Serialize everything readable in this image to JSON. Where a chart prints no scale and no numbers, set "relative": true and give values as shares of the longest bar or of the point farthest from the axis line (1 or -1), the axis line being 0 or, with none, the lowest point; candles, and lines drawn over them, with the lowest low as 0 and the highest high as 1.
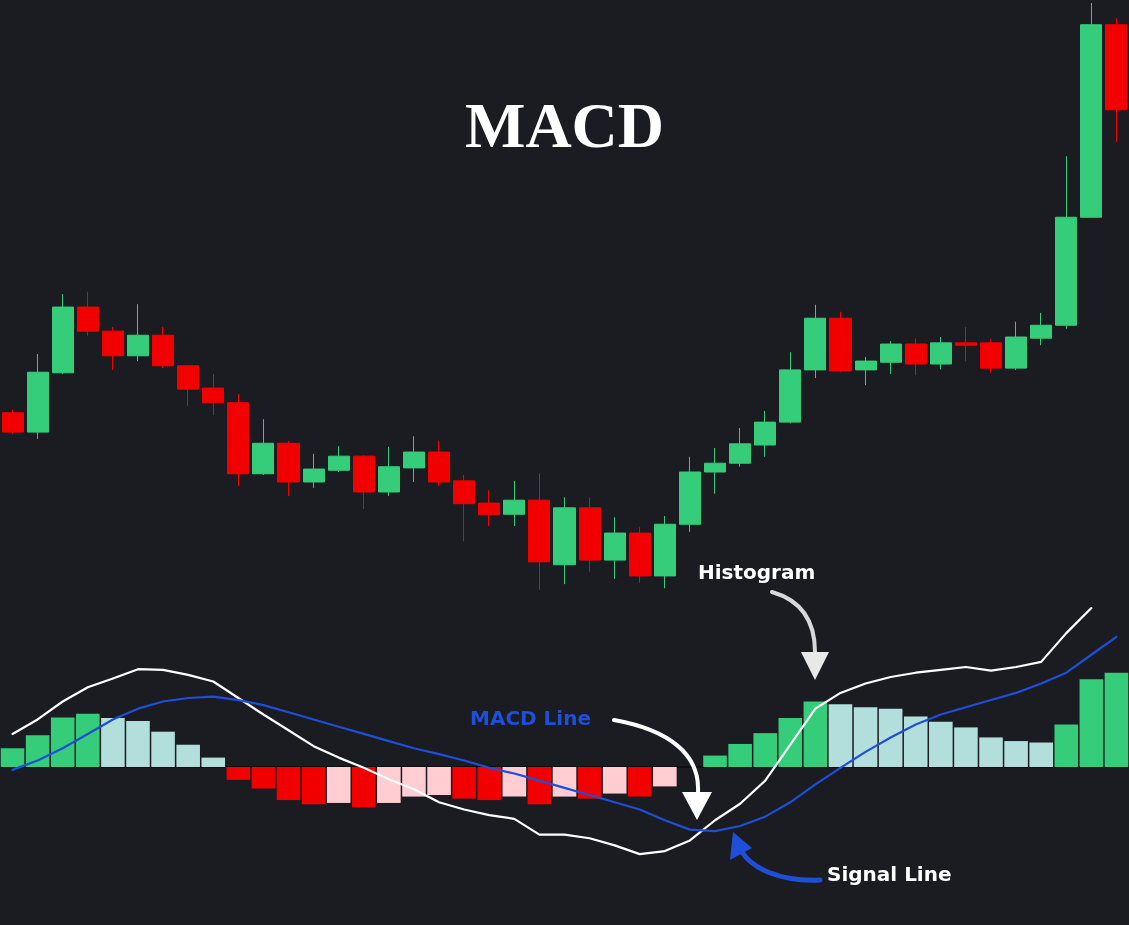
{
  "chart_data": [
    {
      "type": "candlestick",
      "title": "MACD",
      "relative": true,
      "categories": [
        null,
        null,
        null,
        null,
        null,
        null,
        null,
        null,
        null,
        null,
        null,
        null,
        null,
        null,
        null,
        null,
        null,
        null,
        null,
        null,
        null,
        null,
        null,
        null,
        null,
        null,
        null,
        null,
        null,
        null,
        null,
        null,
        null,
        null,
        null,
        null,
        null,
        null,
        null,
        null,
        null,
        null,
        null,
        null,
        null
      ],
      "ohlc": [
        [
          0.302,
          0.307,
          0.266,
          0.269
        ],
        [
          0.269,
          0.402,
          0.257,
          0.371
        ],
        [
          0.37,
          0.504,
          0.368,
          0.482
        ],
        [
          0.482,
          0.508,
          0.433,
          0.441
        ],
        [
          0.441,
          0.448,
          0.375,
          0.399
        ],
        [
          0.399,
          0.487,
          0.39,
          0.434
        ],
        [
          0.434,
          0.448,
          0.378,
          0.382
        ],
        [
          0.382,
          0.383,
          0.313,
          0.342
        ],
        [
          0.344,
          0.368,
          0.298,
          0.319
        ],
        [
          0.319,
          0.334,
          0.177,
          0.198
        ],
        [
          0.198,
          0.291,
          0.196,
          0.25
        ],
        [
          0.25,
          0.254,
          0.16,
          0.184
        ],
        [
          0.184,
          0.232,
          0.174,
          0.206
        ],
        [
          0.204,
          0.245,
          0.201,
          0.228
        ],
        [
          0.228,
          0.23,
          0.138,
          0.167
        ],
        [
          0.167,
          0.244,
          0.16,
          0.21
        ],
        [
          0.208,
          0.262,
          0.184,
          0.235
        ],
        [
          0.235,
          0.254,
          0.177,
          0.184
        ],
        [
          0.186,
          0.196,
          0.083,
          0.147
        ],
        [
          0.148,
          0.17,
          0.109,
          0.128
        ],
        [
          0.129,
          0.186,
          0.109,
          0.153
        ],
        [
          0.153,
          0.199,
          0,
          0.048
        ],
        [
          0.043,
          0.158,
          0.01,
          0.14
        ],
        [
          0.14,
          0.158,
          0.031,
          0.051
        ],
        [
          0.051,
          0.124,
          0.019,
          0.097
        ],
        [
          0.097,
          0.107,
          0.012,
          0.024
        ],
        [
          0.024,
          0.126,
          0.003,
          0.112
        ],
        [
          0.112,
          0.227,
          0.099,
          0.201
        ],
        [
          0.201,
          0.242,
          0.164,
          0.216
        ],
        [
          0.216,
          0.276,
          0.21,
          0.249
        ],
        [
          0.247,
          0.305,
          0.227,
          0.286
        ],
        [
          0.286,
          0.405,
          0.284,
          0.375
        ],
        [
          0.375,
          0.486,
          0.361,
          0.463
        ],
        [
          0.463,
          0.474,
          0.371,
          0.373
        ],
        [
          0.375,
          0.397,
          0.349,
          0.39
        ],
        [
          0.388,
          0.424,
          0.368,
          0.419
        ],
        [
          0.419,
          0.429,
          0.366,
          0.385
        ],
        [
          0.385,
          0.431,
          0.376,
          0.421
        ],
        [
          0.421,
          0.448,
          0.39,
          0.417
        ],
        [
          0.421,
          0.428,
          0.37,
          0.378
        ],
        [
          0.378,
          0.457,
          0.375,
          0.431
        ],
        [
          0.429,
          0.472,
          0.417,
          0.451
        ],
        [
          0.451,
          0.739,
          0.445,
          0.635
        ],
        [
          0.635,
          1,
          0.635,
          0.963
        ],
        [
          0.963,
          0.974,
          0.763,
          0.818
        ]
      ],
      "colors": [
        "#f20000",
        "#35cc7a",
        "#35cc7a",
        "#f20000",
        "#f20000",
        "#35cc7a",
        "#f20000",
        "#f20000",
        "#f20000",
        "#f20000",
        "#35cc7a",
        "#f20000",
        "#35cc7a",
        "#35cc7a",
        "#f20000",
        "#35cc7a",
        "#35cc7a",
        "#f20000",
        "#f20000",
        "#f20000",
        "#35cc7a",
        "#f20000",
        "#35cc7a",
        "#f20000",
        "#35cc7a",
        "#f20000",
        "#35cc7a",
        "#35cc7a",
        "#35cc7a",
        "#35cc7a",
        "#35cc7a",
        "#35cc7a",
        "#35cc7a",
        "#f20000",
        "#35cc7a",
        "#35cc7a",
        "#f20000",
        "#35cc7a",
        "#f20000",
        "#f20000",
        "#35cc7a",
        "#35cc7a",
        "#35cc7a",
        "#35cc7a",
        "#f20000"
      ]
    },
    {
      "type": "bar",
      "relative": true,
      "marker": "none",
      "line_style": "solid",
      "annotations": [
        "Histogram",
        "MACD Line",
        "Signal Line"
      ],
      "categories": [
        null,
        null,
        null,
        null,
        null,
        null,
        null,
        null,
        null,
        null,
        null,
        null,
        null,
        null,
        null,
        null,
        null,
        null,
        null,
        null,
        null,
        null,
        null,
        null,
        null,
        null,
        null,
        null,
        null,
        null,
        null,
        null,
        null,
        null,
        null,
        null,
        null,
        null,
        null,
        null,
        null,
        null,
        null,
        null,
        null
      ],
      "series": [
        {
          "type": "bar",
          "values": [
            0.118,
            0.199,
            0.312,
            0.335,
            0.308,
            0.29,
            0.222,
            0.14,
            0.059,
            -0.081,
            -0.136,
            -0.208,
            -0.235,
            -0.226,
            -0.253,
            -0.226,
            -0.186,
            -0.176,
            -0.199,
            -0.208,
            -0.186,
            -0.235,
            -0.186,
            -0.199,
            -0.167,
            -0.186,
            -0.122,
            0,
            0.072,
            0.145,
            0.213,
            0.308,
            0.412,
            0.394,
            0.376,
            0.367,
            0.317,
            0.285,
            0.249,
            0.186,
            0.163,
            0.154,
            0.267,
            0.552,
            0.593
          ],
          "colors": [
            "#35cc7a",
            "#35cc7a",
            "#35cc7a",
            "#35cc7a",
            "#b2dfdb",
            "#b2dfdb",
            "#b2dfdb",
            "#b2dfdb",
            "#b2dfdb",
            "#f20000",
            "#f20000",
            "#f20000",
            "#f20000",
            "#ffcdd2",
            "#f20000",
            "#ffcdd2",
            "#ffcdd2",
            "#ffcdd2",
            "#f20000",
            "#f20000",
            "#ffcdd2",
            "#f20000",
            "#ffcdd2",
            "#f20000",
            "#ffcdd2",
            "#f20000",
            "#ffcdd2",
            "#35cc7a",
            "#35cc7a",
            "#35cc7a",
            "#35cc7a",
            "#35cc7a",
            "#35cc7a",
            "#b2dfdb",
            "#b2dfdb",
            "#b2dfdb",
            "#b2dfdb",
            "#b2dfdb",
            "#b2dfdb",
            "#b2dfdb",
            "#b2dfdb",
            "#b2dfdb",
            "#35cc7a",
            "#35cc7a",
            "#35cc7a"
          ]
        },
        {
          "type": "line",
          "color": "#ffffff",
          "values": [
            0.208,
            0.299,
            0.412,
            0.502,
            0.557,
            0.615,
            0.611,
            0.579,
            0.538,
            0.434,
            0.33,
            0.231,
            0.131,
            0.059,
            -0.005,
            -0.077,
            -0.14,
            -0.222,
            -0.267,
            -0.303,
            -0.326,
            -0.425,
            -0.425,
            -0.448,
            -0.493,
            -0.548,
            -0.529,
            -0.462,
            -0.335,
            -0.231,
            -0.086,
            0.14,
            0.367,
            0.466,
            0.525,
            0.566,
            0.593,
            0.611,
            0.629,
            0.606,
            0.629,
            0.661,
            0.842,
            1,
            null
          ]
        },
        {
          "type": "line",
          "color": "#1f4fd8",
          "values": [
            -0.018,
            0.041,
            0.118,
            0.208,
            0.299,
            0.367,
            0.412,
            0.434,
            0.443,
            0.421,
            0.389,
            0.344,
            0.299,
            0.253,
            0.208,
            0.163,
            0.118,
            0.081,
            0.041,
            -0.005,
            -0.041,
            -0.086,
            -0.131,
            -0.176,
            -0.222,
            -0.267,
            -0.335,
            -0.394,
            -0.403,
            -0.371,
            -0.312,
            -0.222,
            -0.109,
            -0.005,
            0.095,
            0.186,
            0.267,
            0.33,
            0.376,
            0.421,
            0.466,
            0.525,
            0.593,
            0.706,
            0.819
          ]
        }
      ]
    }
  ]
}
